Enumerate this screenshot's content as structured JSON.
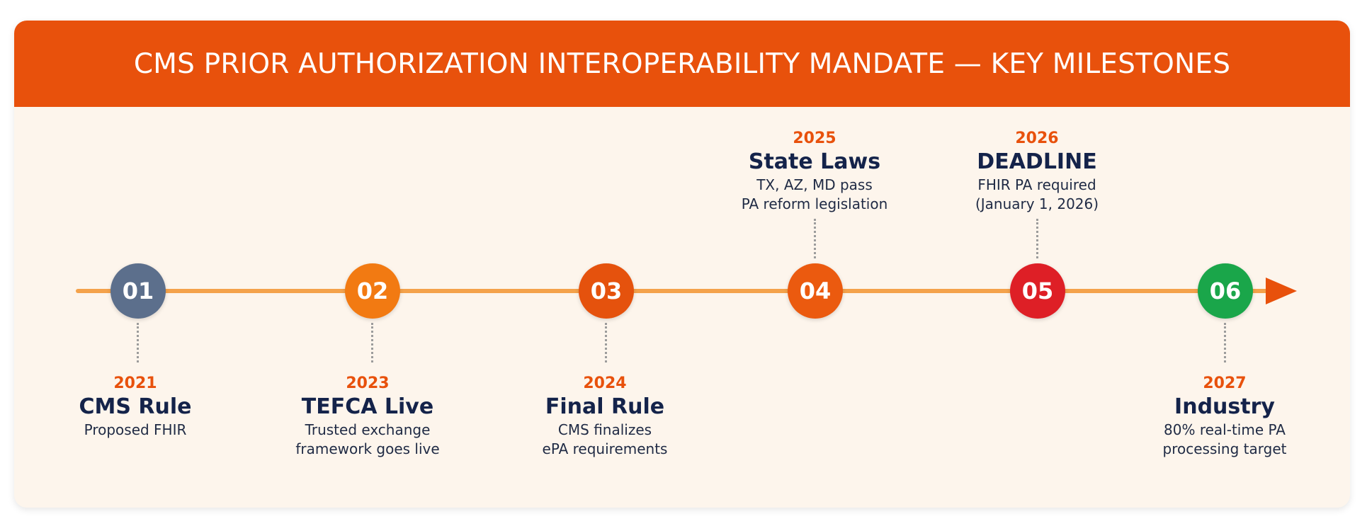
{
  "header": {
    "title": "CMS PRIOR AUTHORIZATION INTEROPERABILITY MANDATE — KEY MILESTONES"
  },
  "colors": {
    "header_bg": "#e8510c",
    "card_bg": "#fdf5ec",
    "track": "#f4a24b",
    "arrow": "#e8510c",
    "year_text": "#e8510c",
    "name_text": "#14234a"
  },
  "milestones": [
    {
      "number": "01",
      "year": "2021",
      "title": "CMS Rule",
      "desc_line1": "Proposed FHIR",
      "desc_line2": "",
      "color": "#5c6f8c",
      "label_position": "below"
    },
    {
      "number": "02",
      "year": "2023",
      "title": "TEFCA Live",
      "desc_line1": "Trusted exchange",
      "desc_line2": "framework goes live",
      "color": "#f27a12",
      "label_position": "below"
    },
    {
      "number": "03",
      "year": "2024",
      "title": "Final Rule",
      "desc_line1": "CMS finalizes",
      "desc_line2": "ePA requirements",
      "color": "#e5520d",
      "label_position": "below"
    },
    {
      "number": "04",
      "year": "2025",
      "title": "State Laws",
      "desc_line1": "TX, AZ, MD pass",
      "desc_line2": "PA reform legislation",
      "color": "#eb5a0f",
      "label_position": "above"
    },
    {
      "number": "05",
      "year": "2026",
      "title": "DEADLINE",
      "desc_line1": "FHIR PA required",
      "desc_line2": "(January 1, 2026)",
      "color": "#de1f26",
      "label_position": "above"
    },
    {
      "number": "06",
      "year": "2027",
      "title": "Industry",
      "desc_line1": "80% real-time PA",
      "desc_line2": "processing target",
      "color": "#1aa64a",
      "label_position": "below"
    }
  ]
}
